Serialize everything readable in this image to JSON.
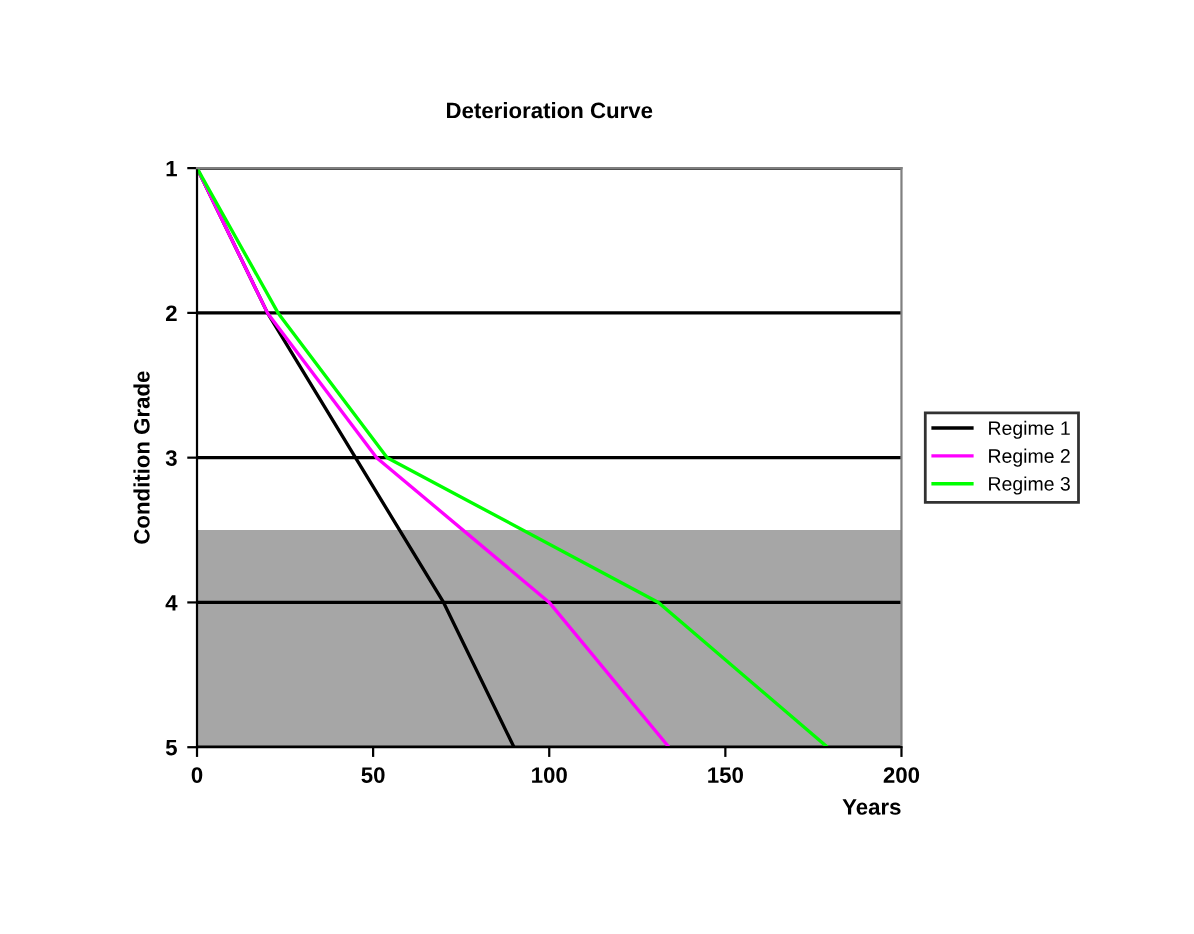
{
  "chart_data": {
    "type": "line",
    "title": "Deterioration Curve",
    "xlabel": "Years",
    "ylabel": "Condition Grade",
    "xlim": [
      0,
      200
    ],
    "xticks": [
      0,
      50,
      100,
      150,
      200
    ],
    "ylim": [
      5,
      1
    ],
    "yticks": [
      1,
      2,
      3,
      4,
      5
    ],
    "grid": "y",
    "legend": "right",
    "marker": "none",
    "line_style": "solid",
    "bands": [
      {
        "axis": "y",
        "from": 3.5,
        "to": 5,
        "color": "#808080"
      }
    ],
    "series": [
      {
        "name": "Regime 1",
        "color": "#000000",
        "x": [
          0,
          20,
          70,
          90
        ],
        "values": [
          1,
          2,
          4,
          5
        ]
      },
      {
        "name": "Regime 2",
        "color": "#ff00ff",
        "x": [
          0,
          20,
          51,
          100,
          134
        ],
        "values": [
          1,
          2,
          3,
          4,
          5
        ]
      },
      {
        "name": "Regime 3",
        "color": "#00ff00",
        "x": [
          0,
          23,
          54,
          131,
          179
        ],
        "values": [
          1,
          2,
          3,
          4,
          5
        ]
      }
    ]
  }
}
